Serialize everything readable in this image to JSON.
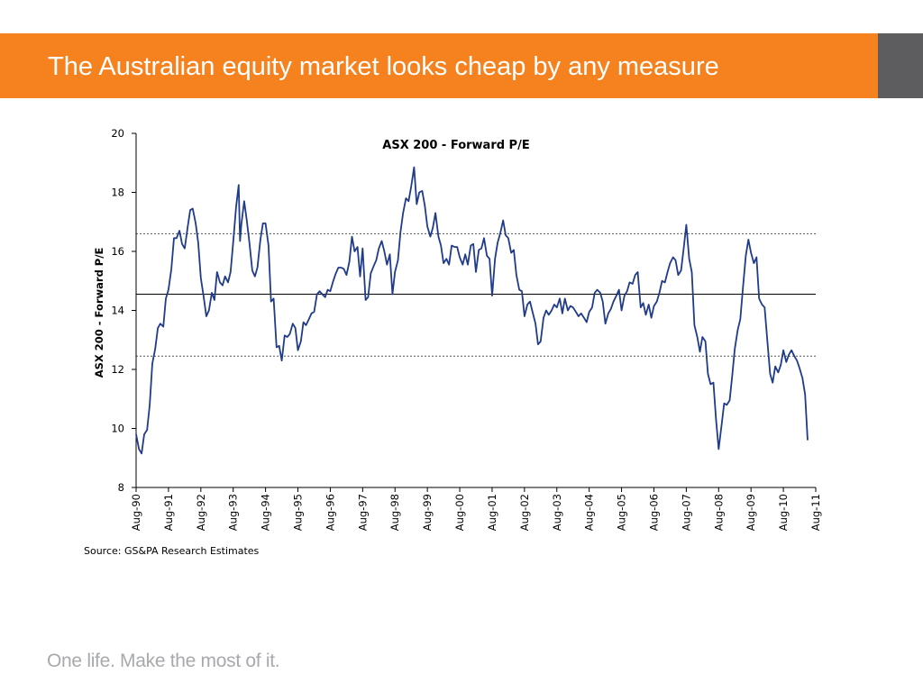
{
  "header": {
    "title": "The Australian equity market looks cheap by any measure",
    "bar_color": "#f5821f",
    "side_color": "#5d5d5f"
  },
  "footer": {
    "tagline": "One life. Make the most of it."
  },
  "chart_data": {
    "type": "line",
    "title": "ASX 200 - Forward P/E",
    "ylabel": "ASX 200 - Forward P/E",
    "xlabel": "",
    "source": "Source: GS&PA Research Estimates",
    "ylim": [
      8,
      20
    ],
    "y_ticks": [
      8,
      10,
      12,
      14,
      16,
      18,
      20
    ],
    "x_ticks": [
      "Aug-90",
      "Aug-91",
      "Aug-92",
      "Aug-93",
      "Aug-94",
      "Aug-95",
      "Aug-96",
      "Aug-97",
      "Aug-98",
      "Aug-99",
      "Aug-00",
      "Aug-01",
      "Aug-02",
      "Aug-03",
      "Aug-04",
      "Aug-05",
      "Aug-06",
      "Aug-07",
      "Aug-08",
      "Aug-09",
      "Aug-10",
      "Aug-11"
    ],
    "line_color": "#1f3b8a",
    "reference_lines": [
      {
        "value": 16.6,
        "style": "dashed"
      },
      {
        "value": 14.55,
        "style": "solid"
      },
      {
        "value": 12.45,
        "style": "dashed"
      }
    ],
    "series": [
      {
        "values": [
          [
            1990.58,
            9.8
          ],
          [
            1990.67,
            9.3
          ],
          [
            1990.75,
            9.15
          ],
          [
            1990.83,
            9.8
          ],
          [
            1990.92,
            9.95
          ],
          [
            1991.0,
            10.8
          ],
          [
            1991.08,
            12.2
          ],
          [
            1991.17,
            12.7
          ],
          [
            1991.25,
            13.4
          ],
          [
            1991.33,
            13.55
          ],
          [
            1991.42,
            13.45
          ],
          [
            1991.5,
            14.4
          ],
          [
            1991.58,
            14.7
          ],
          [
            1991.67,
            15.4
          ],
          [
            1991.75,
            16.45
          ],
          [
            1991.83,
            16.45
          ],
          [
            1991.92,
            16.7
          ],
          [
            1992.0,
            16.25
          ],
          [
            1992.08,
            16.1
          ],
          [
            1992.17,
            16.8
          ],
          [
            1992.25,
            17.4
          ],
          [
            1992.33,
            17.45
          ],
          [
            1992.42,
            16.95
          ],
          [
            1992.5,
            16.3
          ],
          [
            1992.58,
            15.1
          ],
          [
            1992.67,
            14.45
          ],
          [
            1992.75,
            13.8
          ],
          [
            1992.83,
            14.0
          ],
          [
            1992.92,
            14.6
          ],
          [
            1993.0,
            14.35
          ],
          [
            1993.08,
            15.3
          ],
          [
            1993.17,
            14.95
          ],
          [
            1993.25,
            14.85
          ],
          [
            1993.33,
            15.15
          ],
          [
            1993.42,
            14.95
          ],
          [
            1993.5,
            15.3
          ],
          [
            1993.58,
            16.3
          ],
          [
            1993.67,
            17.5
          ],
          [
            1993.75,
            18.25
          ],
          [
            1993.79,
            16.35
          ],
          [
            1993.83,
            16.9
          ],
          [
            1993.92,
            17.7
          ],
          [
            1994.0,
            17.05
          ],
          [
            1994.08,
            16.3
          ],
          [
            1994.17,
            15.35
          ],
          [
            1994.25,
            15.15
          ],
          [
            1994.33,
            15.45
          ],
          [
            1994.42,
            16.4
          ],
          [
            1994.5,
            16.95
          ],
          [
            1994.58,
            16.95
          ],
          [
            1994.67,
            16.2
          ],
          [
            1994.75,
            14.3
          ],
          [
            1994.83,
            14.4
          ],
          [
            1994.92,
            12.75
          ],
          [
            1995.0,
            12.8
          ],
          [
            1995.08,
            12.3
          ],
          [
            1995.17,
            13.15
          ],
          [
            1995.25,
            13.1
          ],
          [
            1995.33,
            13.2
          ],
          [
            1995.42,
            13.55
          ],
          [
            1995.5,
            13.4
          ],
          [
            1995.58,
            12.65
          ],
          [
            1995.67,
            12.95
          ],
          [
            1995.75,
            13.6
          ],
          [
            1995.83,
            13.5
          ],
          [
            1995.92,
            13.7
          ],
          [
            1996.0,
            13.9
          ],
          [
            1996.08,
            13.95
          ],
          [
            1996.17,
            14.55
          ],
          [
            1996.25,
            14.65
          ],
          [
            1996.33,
            14.55
          ],
          [
            1996.42,
            14.45
          ],
          [
            1996.5,
            14.7
          ],
          [
            1996.58,
            14.65
          ],
          [
            1996.67,
            15.0
          ],
          [
            1996.75,
            15.25
          ],
          [
            1996.83,
            15.45
          ],
          [
            1996.92,
            15.45
          ],
          [
            1997.0,
            15.4
          ],
          [
            1997.08,
            15.2
          ],
          [
            1997.17,
            15.65
          ],
          [
            1997.25,
            16.5
          ],
          [
            1997.33,
            16.0
          ],
          [
            1997.42,
            16.15
          ],
          [
            1997.5,
            15.15
          ],
          [
            1997.58,
            16.1
          ],
          [
            1997.67,
            14.35
          ],
          [
            1997.75,
            14.45
          ],
          [
            1997.83,
            15.25
          ],
          [
            1997.92,
            15.5
          ],
          [
            1998.0,
            15.7
          ],
          [
            1998.08,
            16.1
          ],
          [
            1998.17,
            16.35
          ],
          [
            1998.25,
            16.0
          ],
          [
            1998.33,
            15.55
          ],
          [
            1998.42,
            15.9
          ],
          [
            1998.5,
            14.55
          ],
          [
            1998.58,
            15.3
          ],
          [
            1998.67,
            15.7
          ],
          [
            1998.75,
            16.65
          ],
          [
            1998.83,
            17.3
          ],
          [
            1998.92,
            17.8
          ],
          [
            1999.0,
            17.7
          ],
          [
            1999.08,
            18.2
          ],
          [
            1999.17,
            18.85
          ],
          [
            1999.25,
            17.6
          ],
          [
            1999.33,
            18.0
          ],
          [
            1999.42,
            18.05
          ],
          [
            1999.5,
            17.55
          ],
          [
            1999.58,
            16.85
          ],
          [
            1999.67,
            16.5
          ],
          [
            1999.75,
            16.8
          ],
          [
            1999.83,
            17.3
          ],
          [
            1999.92,
            16.5
          ],
          [
            2000.0,
            16.2
          ],
          [
            2000.08,
            15.6
          ],
          [
            2000.17,
            15.75
          ],
          [
            2000.25,
            15.55
          ],
          [
            2000.33,
            16.2
          ],
          [
            2000.42,
            16.15
          ],
          [
            2000.5,
            16.15
          ],
          [
            2000.58,
            15.8
          ],
          [
            2000.67,
            15.55
          ],
          [
            2000.75,
            15.9
          ],
          [
            2000.83,
            15.55
          ],
          [
            2000.92,
            16.2
          ],
          [
            2001.0,
            16.25
          ],
          [
            2001.08,
            15.3
          ],
          [
            2001.17,
            16.05
          ],
          [
            2001.25,
            16.1
          ],
          [
            2001.33,
            16.45
          ],
          [
            2001.42,
            15.85
          ],
          [
            2001.5,
            15.75
          ],
          [
            2001.58,
            14.5
          ],
          [
            2001.67,
            15.75
          ],
          [
            2001.75,
            16.3
          ],
          [
            2001.83,
            16.6
          ],
          [
            2001.92,
            17.05
          ],
          [
            2002.0,
            16.55
          ],
          [
            2002.08,
            16.45
          ],
          [
            2002.17,
            15.95
          ],
          [
            2002.25,
            16.05
          ],
          [
            2002.33,
            15.2
          ],
          [
            2002.42,
            14.7
          ],
          [
            2002.5,
            14.65
          ],
          [
            2002.58,
            13.8
          ],
          [
            2002.67,
            14.2
          ],
          [
            2002.75,
            14.3
          ],
          [
            2002.83,
            13.95
          ],
          [
            2002.92,
            13.55
          ],
          [
            2003.0,
            12.85
          ],
          [
            2003.08,
            12.95
          ],
          [
            2003.17,
            13.75
          ],
          [
            2003.25,
            14.0
          ],
          [
            2003.33,
            13.85
          ],
          [
            2003.42,
            14.0
          ],
          [
            2003.5,
            14.2
          ],
          [
            2003.58,
            14.1
          ],
          [
            2003.67,
            14.4
          ],
          [
            2003.75,
            13.9
          ],
          [
            2003.83,
            14.4
          ],
          [
            2003.92,
            14.0
          ],
          [
            2004.0,
            14.15
          ],
          [
            2004.08,
            14.1
          ],
          [
            2004.17,
            13.95
          ],
          [
            2004.25,
            13.8
          ],
          [
            2004.33,
            13.9
          ],
          [
            2004.42,
            13.75
          ],
          [
            2004.5,
            13.6
          ],
          [
            2004.58,
            13.95
          ],
          [
            2004.67,
            14.1
          ],
          [
            2004.75,
            14.6
          ],
          [
            2004.83,
            14.7
          ],
          [
            2004.92,
            14.6
          ],
          [
            2005.0,
            14.3
          ],
          [
            2005.08,
            13.55
          ],
          [
            2005.17,
            13.9
          ],
          [
            2005.25,
            14.05
          ],
          [
            2005.33,
            14.3
          ],
          [
            2005.42,
            14.5
          ],
          [
            2005.5,
            14.7
          ],
          [
            2005.58,
            14.0
          ],
          [
            2005.67,
            14.5
          ],
          [
            2005.75,
            14.65
          ],
          [
            2005.83,
            14.95
          ],
          [
            2005.92,
            14.9
          ],
          [
            2006.0,
            15.2
          ],
          [
            2006.08,
            15.3
          ],
          [
            2006.17,
            14.1
          ],
          [
            2006.25,
            14.25
          ],
          [
            2006.33,
            13.85
          ],
          [
            2006.42,
            14.2
          ],
          [
            2006.5,
            13.75
          ],
          [
            2006.58,
            14.15
          ],
          [
            2006.67,
            14.3
          ],
          [
            2006.75,
            14.6
          ],
          [
            2006.83,
            15.0
          ],
          [
            2006.92,
            14.95
          ],
          [
            2007.0,
            15.3
          ],
          [
            2007.08,
            15.6
          ],
          [
            2007.17,
            15.8
          ],
          [
            2007.25,
            15.7
          ],
          [
            2007.33,
            15.2
          ],
          [
            2007.42,
            15.35
          ],
          [
            2007.5,
            16.1
          ],
          [
            2007.58,
            16.9
          ],
          [
            2007.67,
            15.75
          ],
          [
            2007.75,
            15.3
          ],
          [
            2007.83,
            13.5
          ],
          [
            2007.92,
            13.1
          ],
          [
            2008.0,
            12.6
          ],
          [
            2008.08,
            13.1
          ],
          [
            2008.17,
            12.95
          ],
          [
            2008.25,
            11.85
          ],
          [
            2008.33,
            11.5
          ],
          [
            2008.42,
            11.55
          ],
          [
            2008.5,
            10.3
          ],
          [
            2008.58,
            9.3
          ],
          [
            2008.67,
            10.1
          ],
          [
            2008.75,
            10.85
          ],
          [
            2008.83,
            10.8
          ],
          [
            2008.92,
            10.95
          ],
          [
            2009.0,
            11.8
          ],
          [
            2009.08,
            12.7
          ],
          [
            2009.17,
            13.35
          ],
          [
            2009.25,
            13.7
          ],
          [
            2009.33,
            14.75
          ],
          [
            2009.42,
            15.85
          ],
          [
            2009.5,
            16.4
          ],
          [
            2009.58,
            15.95
          ],
          [
            2009.67,
            15.6
          ],
          [
            2009.75,
            15.8
          ],
          [
            2009.83,
            14.4
          ],
          [
            2009.92,
            14.2
          ],
          [
            2010.0,
            14.1
          ],
          [
            2010.08,
            13.05
          ],
          [
            2010.17,
            11.85
          ],
          [
            2010.25,
            11.55
          ],
          [
            2010.33,
            12.1
          ],
          [
            2010.42,
            11.9
          ],
          [
            2010.5,
            12.15
          ],
          [
            2010.58,
            12.65
          ],
          [
            2010.67,
            12.25
          ],
          [
            2010.75,
            12.5
          ],
          [
            2010.83,
            12.65
          ],
          [
            2010.92,
            12.45
          ],
          [
            2011.0,
            12.3
          ],
          [
            2011.08,
            12.05
          ],
          [
            2011.17,
            11.7
          ],
          [
            2011.25,
            11.15
          ],
          [
            2011.33,
            9.6
          ]
        ]
      }
    ]
  }
}
